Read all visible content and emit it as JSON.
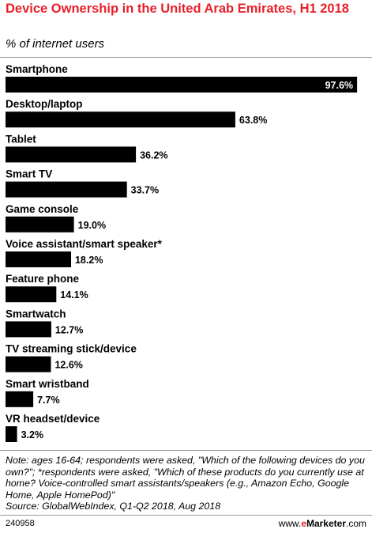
{
  "header": {
    "title": "Device Ownership in the United Arab Emirates, H1 2018",
    "subtitle": "% of internet users"
  },
  "chart_data": {
    "type": "bar",
    "orientation": "horizontal",
    "categories": [
      "Smartphone",
      "Desktop/laptop",
      "Tablet",
      "Smart TV",
      "Game console",
      "Voice assistant/smart speaker*",
      "Feature phone",
      "Smartwatch",
      "TV streaming stick/device",
      "Smart wristband",
      "VR headset/device"
    ],
    "values": [
      97.6,
      63.8,
      36.2,
      33.7,
      19.0,
      18.2,
      14.1,
      12.7,
      12.6,
      7.7,
      3.2
    ],
    "value_labels": [
      "97.6%",
      "63.8%",
      "36.2%",
      "33.7%",
      "19.0%",
      "18.2%",
      "14.1%",
      "12.7%",
      "12.6%",
      "7.7%",
      "3.2%"
    ],
    "title": "Device Ownership in the United Arab Emirates, H1 2018",
    "ylabel": "% of internet users",
    "xlim": [
      0,
      100
    ],
    "bar_color": "#000000",
    "grid": false,
    "legend": "none"
  },
  "footer": {
    "note": "Note: ages 16-64; respondents were asked, \"Which of the following devices do you own?\"; *respondents were asked, \"Which of these products do you currently use at home? Voice-controlled smart assistants/speakers (e.g., Amazon Echo, Google Home, Apple HomePod)\"",
    "source": "Source: GlobalWebIndex, Q1-Q2 2018, Aug 2018",
    "chart_id": "240958",
    "brand_prefix": "www.",
    "brand_e": "e",
    "brand_name": "Marketer",
    "brand_suffix": ".com",
    "accent_color": "#e8202a"
  }
}
